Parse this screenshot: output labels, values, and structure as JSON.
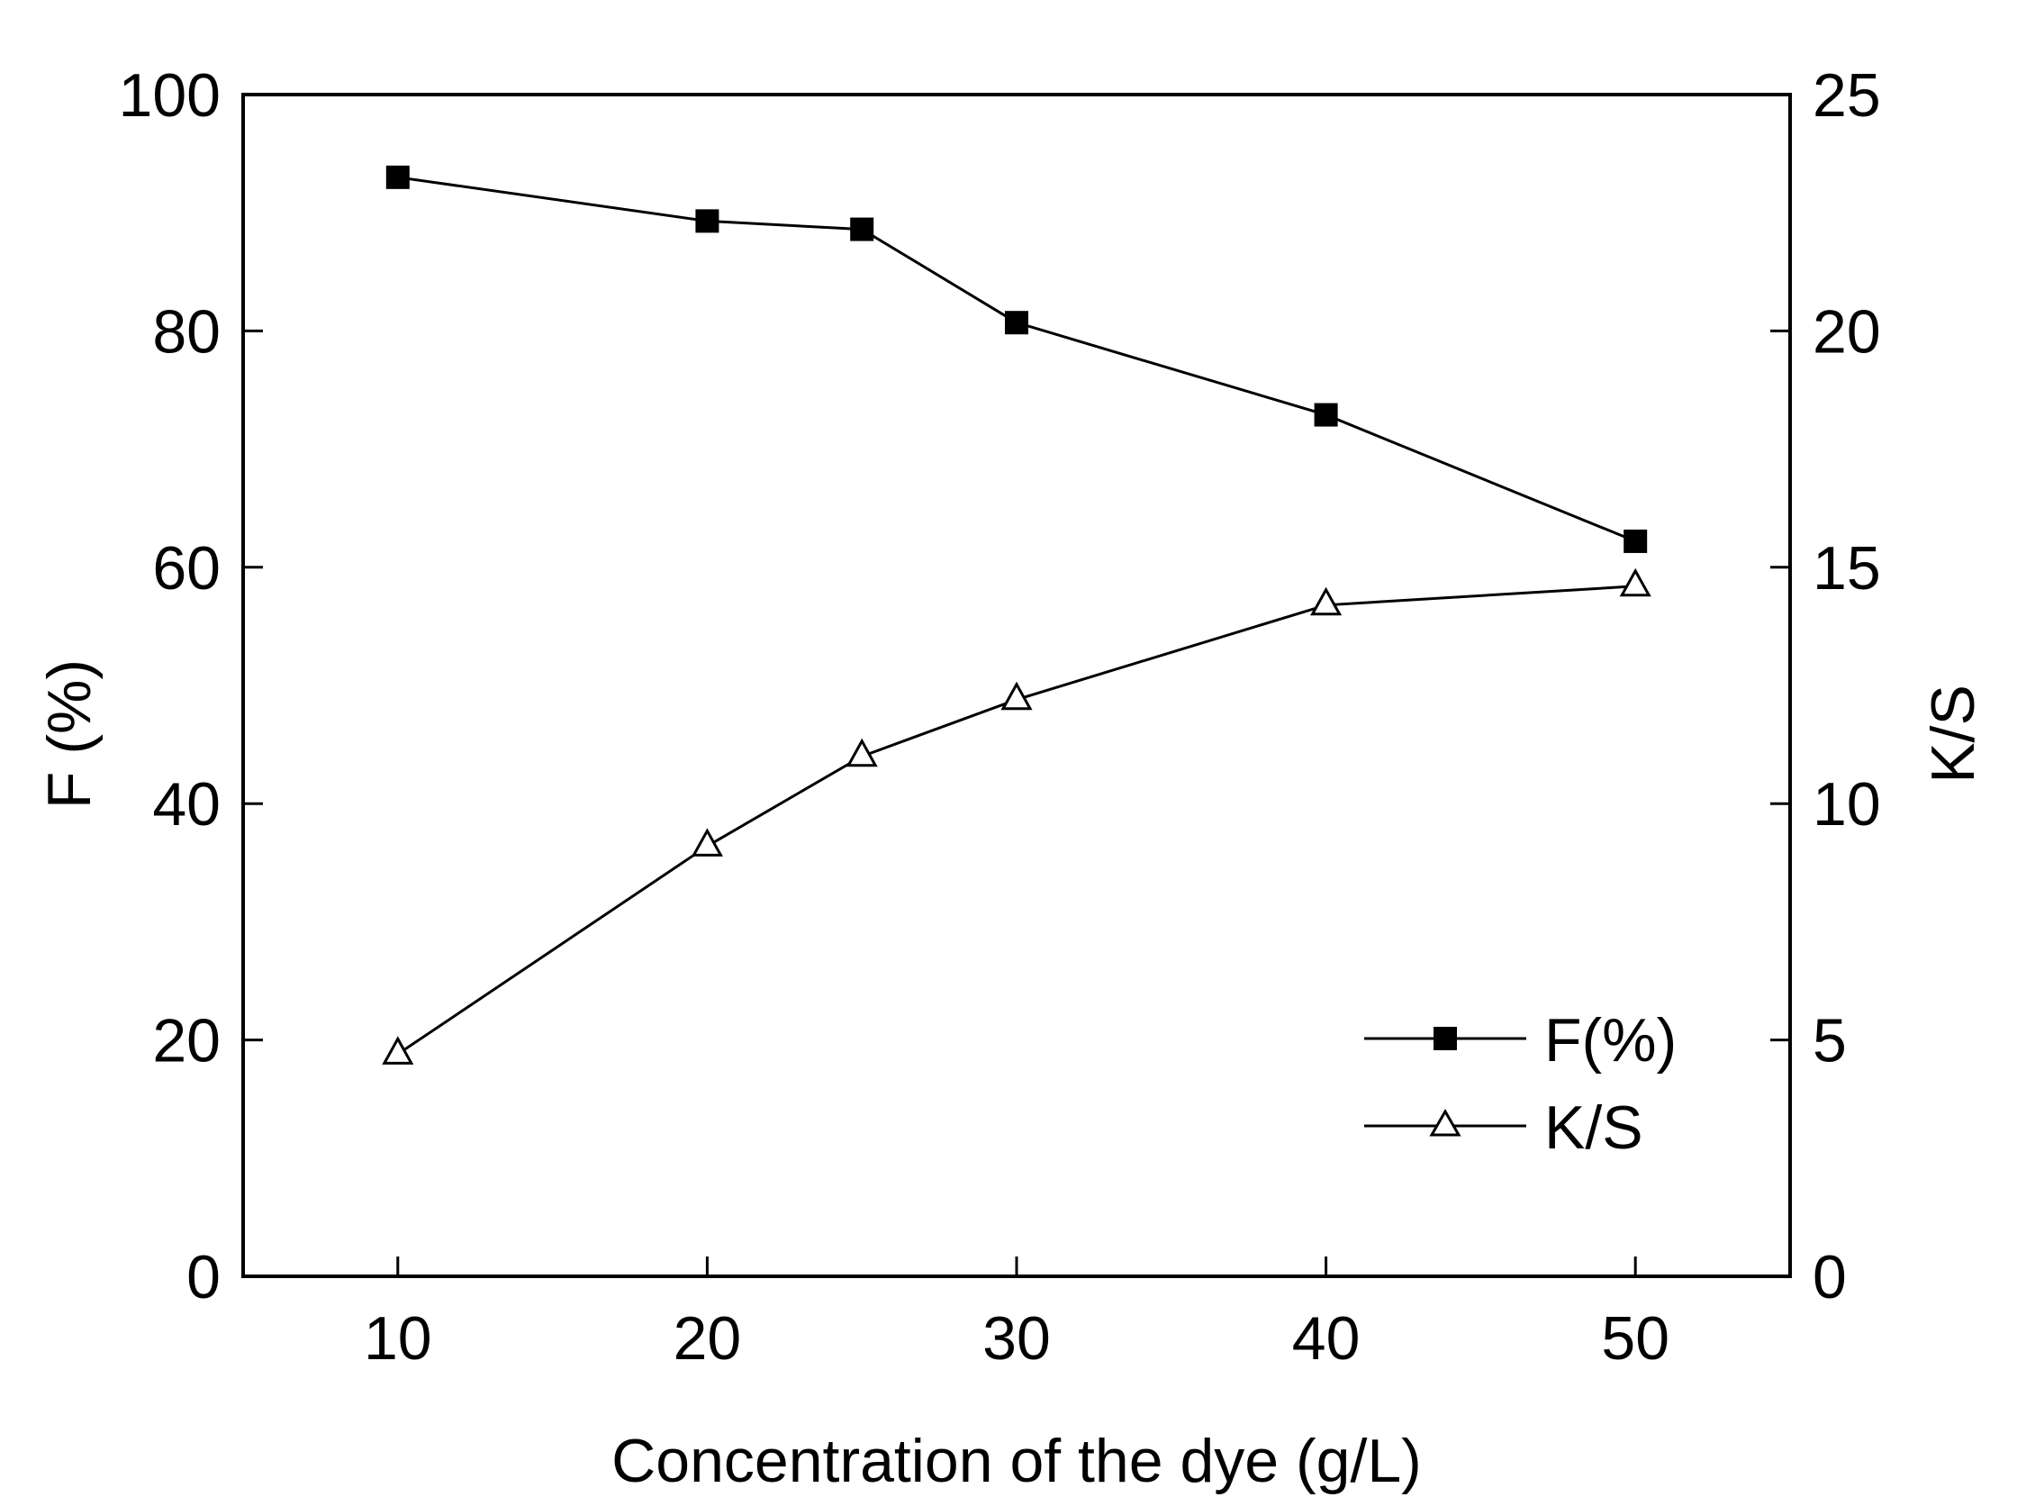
{
  "chart_data": {
    "type": "line",
    "title": "",
    "xlabel": "Concentration of the dye (g/L)",
    "ylabel": "F (%)",
    "y2label": "K/S",
    "xlim": [
      5,
      55
    ],
    "ylim": [
      0,
      100
    ],
    "y2lim": [
      0,
      25
    ],
    "xticks": [
      "10",
      "20",
      "30",
      "40",
      "50"
    ],
    "yticks": [
      "0",
      "20",
      "40",
      "60",
      "80",
      "100"
    ],
    "y2ticks": [
      "0",
      "5",
      "10",
      "15",
      "20",
      "25"
    ],
    "grid": false,
    "legend_position": "bottom-right",
    "series": [
      {
        "name": "F(%)",
        "axis": "left",
        "marker": "filled-square",
        "x": [
          10,
          20,
          25,
          30,
          40,
          50
        ],
        "values": [
          93.0,
          89.3,
          88.6,
          80.7,
          72.9,
          62.2
        ]
      },
      {
        "name": "K/S",
        "axis": "right",
        "marker": "open-triangle",
        "x": [
          10,
          20,
          25,
          30,
          40,
          50
        ],
        "values": [
          4.7,
          9.1,
          11.0,
          12.2,
          14.2,
          14.6
        ]
      }
    ]
  }
}
